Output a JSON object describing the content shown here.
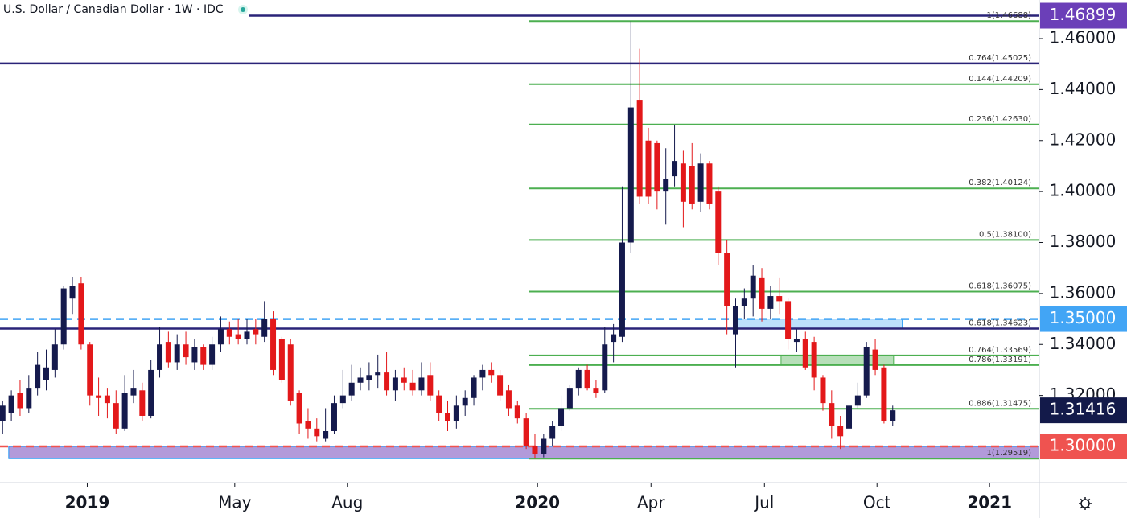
{
  "chart_data": {
    "type": "candlestick",
    "title": "U.S. Dollar / Canadian Dollar · 1W · IDC",
    "up_color": "#151a4d",
    "down_color": "#e3181a",
    "open": [
      1.31,
      1.313,
      1.321,
      1.315,
      1.323,
      1.326,
      1.33,
      1.34,
      1.358,
      1.364,
      1.34,
      1.32,
      1.32,
      1.317,
      1.307,
      1.32,
      1.322,
      1.312,
      1.33,
      1.341,
      1.333,
      1.34,
      1.333,
      1.339,
      1.332,
      1.34,
      1.346,
      1.344,
      1.342,
      1.346,
      1.343,
      1.35,
      1.342,
      1.34,
      1.321,
      1.31,
      1.307,
      1.303,
      1.306,
      1.317,
      1.32,
      1.325,
      1.326,
      1.328,
      1.329,
      1.322,
      1.327,
      1.325,
      1.322,
      1.328,
      1.32,
      1.313,
      1.31,
      1.316,
      1.319,
      1.327,
      1.33,
      1.328,
      1.322,
      1.316,
      1.311,
      1.3,
      1.297,
      1.303,
      1.308,
      1.315,
      1.323,
      1.33,
      1.323,
      1.322,
      1.341,
      1.343,
      1.38,
      1.436,
      1.42,
      1.419,
      1.4,
      1.406,
      1.411,
      1.41,
      1.396,
      1.411,
      1.4,
      1.376,
      1.344,
      1.355,
      1.358,
      1.366,
      1.354,
      1.359,
      1.357,
      1.341,
      1.342,
      1.341,
      1.327,
      1.317,
      1.308,
      1.307,
      1.316,
      1.32,
      1.338,
      1.331,
      1.31
    ],
    "high": [
      1.318,
      1.322,
      1.326,
      1.328,
      1.337,
      1.338,
      1.346,
      1.363,
      1.3665,
      1.3665,
      1.341,
      1.327,
      1.323,
      1.322,
      1.328,
      1.33,
      1.325,
      1.334,
      1.347,
      1.345,
      1.344,
      1.345,
      1.342,
      1.34,
      1.343,
      1.351,
      1.349,
      1.35,
      1.35,
      1.35,
      1.357,
      1.353,
      1.343,
      1.342,
      1.322,
      1.315,
      1.311,
      1.315,
      1.32,
      1.33,
      1.332,
      1.331,
      1.333,
      1.336,
      1.337,
      1.33,
      1.331,
      1.33,
      1.333,
      1.333,
      1.322,
      1.318,
      1.32,
      1.322,
      1.328,
      1.332,
      1.333,
      1.33,
      1.324,
      1.318,
      1.313,
      1.305,
      1.305,
      1.31,
      1.32,
      1.324,
      1.331,
      1.332,
      1.326,
      1.347,
      1.348,
      1.402,
      1.4668,
      1.456,
      1.425,
      1.42,
      1.417,
      1.426,
      1.416,
      1.419,
      1.415,
      1.412,
      1.402,
      1.381,
      1.358,
      1.362,
      1.371,
      1.37,
      1.363,
      1.366,
      1.358,
      1.346,
      1.345,
      1.343,
      1.328,
      1.322,
      1.312,
      1.318,
      1.325,
      1.341,
      1.342,
      1.332,
      1.316
    ],
    "low": [
      1.305,
      1.31,
      1.312,
      1.313,
      1.32,
      1.322,
      1.327,
      1.338,
      1.352,
      1.338,
      1.316,
      1.312,
      1.311,
      1.305,
      1.306,
      1.317,
      1.31,
      1.311,
      1.327,
      1.331,
      1.33,
      1.332,
      1.33,
      1.33,
      1.33,
      1.337,
      1.34,
      1.34,
      1.34,
      1.34,
      1.341,
      1.328,
      1.325,
      1.316,
      1.305,
      1.303,
      1.302,
      1.302,
      1.305,
      1.315,
      1.318,
      1.322,
      1.322,
      1.323,
      1.32,
      1.318,
      1.322,
      1.32,
      1.32,
      1.318,
      1.31,
      1.306,
      1.307,
      1.312,
      1.316,
      1.322,
      1.325,
      1.318,
      1.312,
      1.309,
      1.299,
      1.2952,
      1.2957,
      1.3,
      1.306,
      1.314,
      1.32,
      1.322,
      1.319,
      1.321,
      1.333,
      1.341,
      1.376,
      1.395,
      1.395,
      1.393,
      1.387,
      1.402,
      1.386,
      1.393,
      1.392,
      1.393,
      1.371,
      1.344,
      1.331,
      1.35,
      1.351,
      1.349,
      1.35,
      1.352,
      1.338,
      1.337,
      1.33,
      1.322,
      1.314,
      1.303,
      1.299,
      1.305,
      1.315,
      1.319,
      1.328,
      1.309,
      1.308
    ],
    "close": [
      1.316,
      1.32,
      1.315,
      1.323,
      1.332,
      1.331,
      1.34,
      1.362,
      1.363,
      1.34,
      1.32,
      1.319,
      1.317,
      1.307,
      1.321,
      1.323,
      1.312,
      1.33,
      1.34,
      1.333,
      1.34,
      1.335,
      1.339,
      1.332,
      1.34,
      1.346,
      1.343,
      1.342,
      1.345,
      1.344,
      1.35,
      1.33,
      1.326,
      1.318,
      1.309,
      1.307,
      1.304,
      1.306,
      1.317,
      1.32,
      1.325,
      1.327,
      1.328,
      1.329,
      1.322,
      1.327,
      1.325,
      1.322,
      1.327,
      1.32,
      1.313,
      1.31,
      1.316,
      1.319,
      1.327,
      1.33,
      1.328,
      1.32,
      1.315,
      1.311,
      1.3,
      1.297,
      1.303,
      1.308,
      1.315,
      1.323,
      1.33,
      1.323,
      1.321,
      1.34,
      1.344,
      1.38,
      1.433,
      1.398,
      1.398,
      1.4,
      1.405,
      1.412,
      1.396,
      1.395,
      1.411,
      1.395,
      1.376,
      1.355,
      1.355,
      1.358,
      1.367,
      1.354,
      1.359,
      1.357,
      1.342,
      1.342,
      1.331,
      1.327,
      1.317,
      1.308,
      1.304,
      1.316,
      1.32,
      1.339,
      1.33,
      1.31,
      1.31416
    ],
    "xlim": [
      -0.3,
      118.8
    ],
    "ylim": [
      1.2858,
      1.47515
    ],
    "xticks": [
      {
        "value": 9.7,
        "label": "2019"
      },
      {
        "value": 26.6,
        "label": "May"
      },
      {
        "value": 39.5,
        "label": "Aug"
      },
      {
        "value": 61.3,
        "label": "2020"
      },
      {
        "value": 74.3,
        "label": "Apr"
      },
      {
        "value": 87.3,
        "label": "Jul"
      },
      {
        "value": 100.2,
        "label": "Oct"
      },
      {
        "value": 113.1,
        "label": "2021"
      }
    ],
    "yticks": [
      {
        "value": 1.32,
        "label": "1.32000"
      },
      {
        "value": 1.34,
        "label": "1.34000"
      },
      {
        "value": 1.36,
        "label": "1.36000"
      },
      {
        "value": 1.38,
        "label": "1.38000"
      },
      {
        "value": 1.4,
        "label": "1.40000"
      },
      {
        "value": 1.42,
        "label": "1.42000"
      },
      {
        "value": 1.44,
        "label": "1.44000"
      },
      {
        "value": 1.46,
        "label": "1.46000"
      }
    ],
    "zones": [
      {
        "x": [
          84.2,
          103.1
        ],
        "y": [
          1.3462,
          1.35
        ],
        "color": "rgba(66,165,245,0.35)",
        "edge": "#2196f3"
      },
      {
        "x": [
          89.2,
          102.1
        ],
        "y": [
          1.3319,
          1.3357
        ],
        "color": "rgba(76,175,80,0.4)",
        "edge": "#4caf50"
      },
      {
        "x": [
          0.7,
          118.8
        ],
        "y": [
          1.2952,
          1.3
        ],
        "color": "rgba(126,87,194,0.6)",
        "edge": "#2196f3"
      }
    ],
    "fib_levels": [
      {
        "value": 1.46688,
        "label": "1(1.46688)",
        "color": "#4caf50"
      },
      {
        "value": 1.45025,
        "label": "0.764(1.45025)",
        "color": "#2a2378",
        "extended": true
      },
      {
        "value": 1.44209,
        "label": "0.144(1.44209)",
        "color": "#4caf50"
      },
      {
        "value": 1.4263,
        "label": "0.236(1.42630)",
        "color": "#4caf50"
      },
      {
        "value": 1.40124,
        "label": "0.382(1.40124)",
        "color": "#4caf50"
      },
      {
        "value": 1.381,
        "label": "0.5(1.38100)",
        "color": "#4caf50"
      },
      {
        "value": 1.36075,
        "label": "0.618(1.36075)",
        "color": "#4caf50"
      },
      {
        "value": 1.34623,
        "label": "0.618(1.34623)",
        "color": "#2a2378",
        "extended": true
      },
      {
        "value": 1.33569,
        "label": "0.764(1.33569)",
        "color": "#4caf50"
      },
      {
        "value": 1.33191,
        "label": "0.786(1.33191)",
        "color": "#4caf50"
      },
      {
        "value": 1.31475,
        "label": "0.886(1.31475)",
        "color": "#4caf50"
      },
      {
        "value": 1.29519,
        "label": "1(1.29519)",
        "color": "#4caf50"
      }
    ],
    "price_labels": [
      {
        "value": 1.46899,
        "color": "#6b3fb8",
        "line": "solid",
        "line_color": "#2a2378"
      },
      {
        "value": 1.35,
        "label": "1.35000",
        "color": "#42a5f5",
        "line": "dashed",
        "line_color": "#42a5f5"
      },
      {
        "value": 1.31416,
        "color": "#131a4a"
      },
      {
        "value": 1.3,
        "label": "1.30000",
        "color": "#ef5350",
        "line": "dashed",
        "line_color": "#ef5350"
      }
    ]
  }
}
